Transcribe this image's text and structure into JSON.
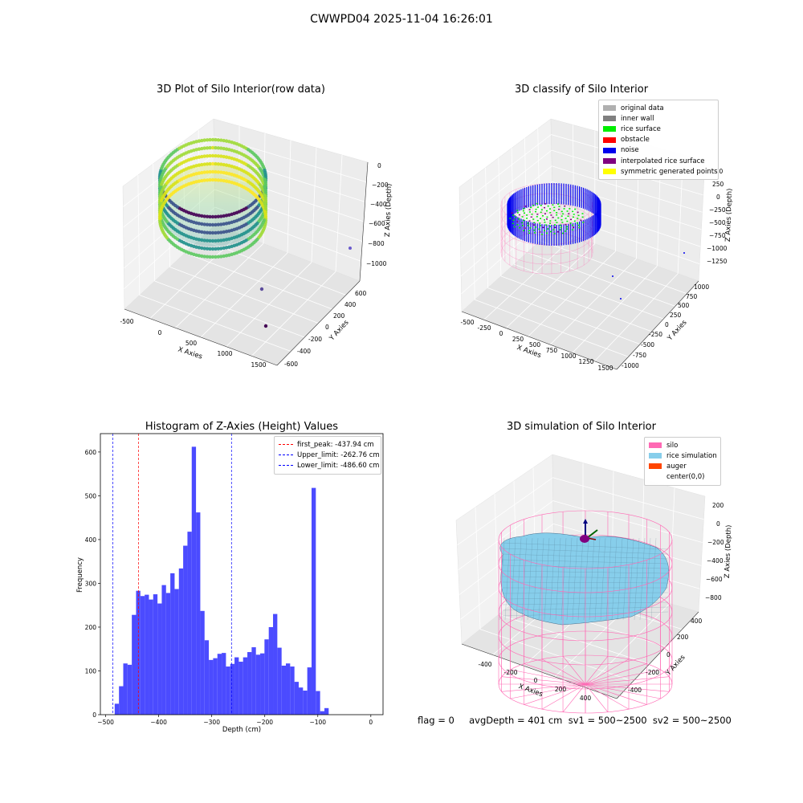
{
  "figure": {
    "suptitle": "CWWPD04 2025-11-04 16:26:01",
    "status_line": "flag = 0     avgDepth = 401 cm  sv1 = 500~2500  sv2 = 500~2500"
  },
  "chart_data": [
    {
      "type": "scatter3d",
      "title": "3D Plot of Silo Interior(row data)",
      "xlabel": "X Axies",
      "ylabel": "Y Axies",
      "zlabel": "Z Axies (Depth)",
      "x_ticks": [
        "-500",
        "0",
        "500",
        "1000",
        "1500"
      ],
      "y_ticks": [
        "-600",
        "-400",
        "-200",
        "0",
        "200",
        "400",
        "600"
      ],
      "z_ticks": [
        "0",
        "−200",
        "−400",
        "−600",
        "−800",
        "−1000"
      ],
      "colormap": "viridis",
      "outlier_points": [
        [
          1500,
          600,
          -300
        ],
        [
          850,
          180,
          -950
        ],
        [
          1300,
          -260,
          -1000
        ]
      ]
    },
    {
      "type": "scatter3d",
      "title": "3D classify of Silo Interior",
      "xlabel": "X Axies",
      "ylabel": "Y Axies",
      "zlabel": "Z Axies (Depth)",
      "x_ticks": [
        "-500",
        "-250",
        "0",
        "250",
        "500",
        "750",
        "1000",
        "1250",
        "1500"
      ],
      "y_ticks": [
        "-1000",
        "-750",
        "-500",
        "-250",
        "0",
        "250",
        "500",
        "750",
        "1000"
      ],
      "z_ticks": [
        "500",
        "250",
        "0",
        "−250",
        "−500",
        "−750",
        "−1000",
        "−1250"
      ],
      "legend": [
        {
          "label": "original data",
          "color": "#b0b0b0"
        },
        {
          "label": "inner wall",
          "color": "#808080"
        },
        {
          "label": "rice surface",
          "color": "#00ee00"
        },
        {
          "label": "obstacle",
          "color": "#ff0000"
        },
        {
          "label": "noise",
          "color": "#0000ee"
        },
        {
          "label": "interpolated rice surface",
          "color": "#800080"
        },
        {
          "label": "symmetric generated points",
          "color": "#ffff00"
        }
      ]
    },
    {
      "type": "bar",
      "title": "Histogram of Z-Axies (Height) Values",
      "xlabel": "Depth (cm)",
      "ylabel": "Frequency",
      "xlim": [
        -510,
        23
      ],
      "ylim": [
        0,
        642
      ],
      "x_ticks": [
        "−500",
        "−400",
        "−300",
        "−200",
        "−100",
        "0"
      ],
      "y_ticks": [
        "0",
        "100",
        "200",
        "300",
        "400",
        "500",
        "600"
      ],
      "bin_start": -483,
      "bin_width": 8.07,
      "values": [
        25,
        65,
        117,
        114,
        228,
        283,
        271,
        274,
        263,
        275,
        254,
        296,
        278,
        323,
        287,
        334,
        386,
        418,
        612,
        462,
        237,
        170,
        125,
        129,
        139,
        141,
        110,
        116,
        131,
        121,
        131,
        143,
        154,
        137,
        140,
        172,
        200,
        230,
        153,
        112,
        117,
        110,
        75,
        62,
        55,
        108,
        518,
        54,
        8,
        15
      ],
      "bar_color": "#4b4bff",
      "vlines": [
        {
          "label": "first_peak: -437.94 cm",
          "x": -437.94,
          "color": "#ff0000"
        },
        {
          "label": "Upper_limit: -262.76 cm",
          "x": -262.76,
          "color": "#0000ff"
        },
        {
          "label": "Lower_limit: -486.60 cm",
          "x": -486.6,
          "color": "#0000ff"
        }
      ],
      "legend_position": "top-right"
    },
    {
      "type": "surface3d",
      "title": "3D simulation of Silo Interior",
      "xlabel": "X Axies",
      "ylabel": "Y Axies",
      "zlabel": "Z Axies (Depth)",
      "x_ticks": [
        "-400",
        "-200",
        "0",
        "200",
        "400"
      ],
      "y_ticks": [
        "-400",
        "-200",
        "0",
        "200",
        "400"
      ],
      "z_ticks": [
        "200",
        "0",
        "−200",
        "−400",
        "−600",
        "−800"
      ],
      "legend": [
        {
          "label": "silo",
          "color": "#ff69b4"
        },
        {
          "label": "rice simulation",
          "color": "#87ceeb"
        },
        {
          "label": "auger",
          "color": "#ff4500"
        },
        {
          "label": "center(0,0)",
          "color": ""
        }
      ]
    }
  ]
}
